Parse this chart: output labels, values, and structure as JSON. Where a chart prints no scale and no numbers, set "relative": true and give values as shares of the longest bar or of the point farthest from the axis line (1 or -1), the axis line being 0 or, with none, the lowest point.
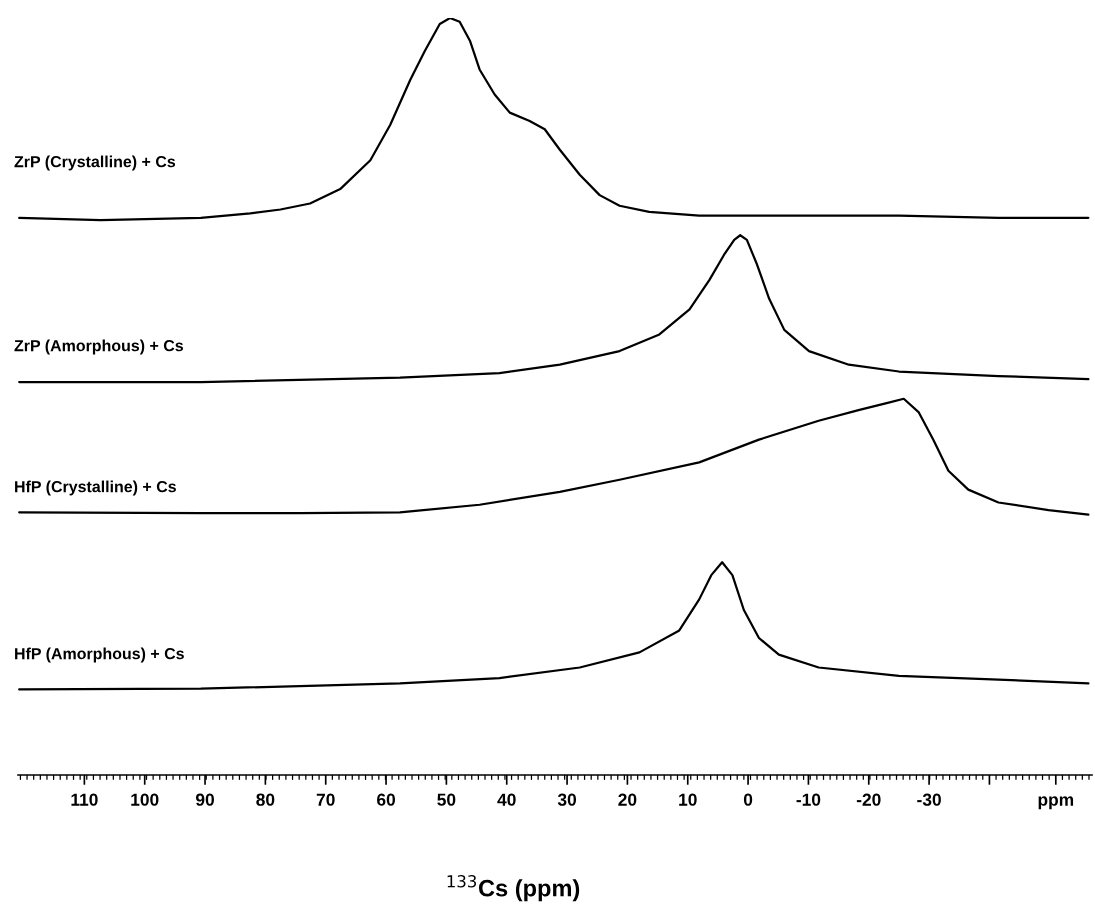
{
  "chart_data": {
    "type": "line",
    "relative": true,
    "xlim": [
      121,
      -57
    ],
    "xlabel": "$^{133}$Cs (ppm)",
    "xticks": [
      110,
      100,
      90,
      80,
      70,
      60,
      50,
      40,
      30,
      20,
      10,
      0,
      -10,
      -20,
      -30,
      {
        "value": -40,
        "label": null
      },
      {
        "value": -51,
        "label": "ppm"
      }
    ],
    "series": [
      {
        "name": "ZrP (Crystalline) + Cs",
        "color": "#000000",
        "x": [
          120.8,
          107.3,
          90.7,
          82.5,
          77.5,
          72.6,
          67.6,
          62.6,
          59.3,
          56.0,
          53.6,
          51.1,
          49.4,
          47.8,
          46.1,
          44.5,
          42.0,
          39.5,
          36.2,
          33.7,
          31.2,
          27.9,
          24.6,
          21.3,
          16.4,
          8.1,
          -8.4,
          -25.0,
          -41.5,
          -56.4
        ],
        "values": [
          0.736,
          0.733,
          0.736,
          0.742,
          0.747,
          0.755,
          0.774,
          0.812,
          0.859,
          0.918,
          0.956,
          0.992,
          1.0,
          0.995,
          0.97,
          0.932,
          0.899,
          0.875,
          0.864,
          0.853,
          0.826,
          0.793,
          0.766,
          0.752,
          0.744,
          0.739,
          0.739,
          0.739,
          0.736,
          0.736
        ]
      },
      {
        "name": "ZrP (Amorphous) + Cs",
        "color": "#000000",
        "x": [
          120.8,
          90.7,
          57.7,
          41.2,
          31.2,
          21.3,
          14.7,
          9.7,
          6.4,
          4.0,
          2.3,
          1.3,
          0.2,
          -1.5,
          -3.5,
          -6.0,
          -10.1,
          -16.7,
          -25.0,
          -41.5,
          -56.4
        ],
        "values": [
          0.519,
          0.519,
          0.525,
          0.531,
          0.542,
          0.56,
          0.582,
          0.615,
          0.654,
          0.687,
          0.707,
          0.713,
          0.707,
          0.674,
          0.629,
          0.588,
          0.56,
          0.542,
          0.533,
          0.527,
          0.523
        ]
      },
      {
        "name": "HfP (Crystalline) + Cs",
        "color": "#000000",
        "x": [
          120.8,
          90.7,
          74.2,
          57.7,
          44.5,
          31.2,
          21.3,
          8.1,
          -1.8,
          -11.7,
          -18.3,
          -23.3,
          -25.8,
          -28.3,
          -30.7,
          -33.2,
          -36.5,
          -41.5,
          -49.8,
          -56.4
        ],
        "values": [
          0.347,
          0.346,
          0.346,
          0.347,
          0.357,
          0.374,
          0.39,
          0.413,
          0.443,
          0.468,
          0.482,
          0.492,
          0.497,
          0.479,
          0.443,
          0.402,
          0.377,
          0.36,
          0.35,
          0.344
        ]
      },
      {
        "name": "HfP (Amorphous) + Cs",
        "color": "#000000",
        "x": [
          120.8,
          90.7,
          57.7,
          41.2,
          27.9,
          18.0,
          11.4,
          8.1,
          6.1,
          4.3,
          2.6,
          0.7,
          -1.8,
          -5.1,
          -11.7,
          -25.0,
          -41.5,
          -56.4
        ],
        "values": [
          0.113,
          0.114,
          0.121,
          0.128,
          0.142,
          0.162,
          0.191,
          0.232,
          0.264,
          0.281,
          0.264,
          0.218,
          0.181,
          0.159,
          0.142,
          0.131,
          0.126,
          0.121
        ]
      }
    ]
  }
}
